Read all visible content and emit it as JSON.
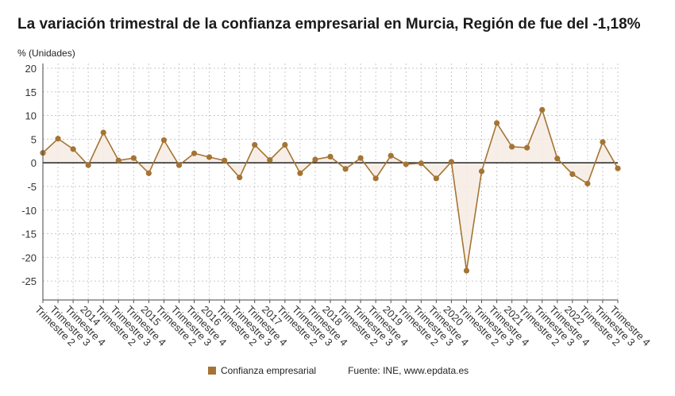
{
  "colors": {
    "series": "#a57434",
    "fill": "#f6ece3",
    "zero": "#222222",
    "grid": "#c8c8c8"
  },
  "source": "Fuente: INE, www.epdata.es",
  "chart_data": {
    "type": "line",
    "title": "La variación trimestral de la confianza empresarial en Murcia, Región de fue del -1,18%",
    "ylabel": "% (Unidades)",
    "xlabel": "",
    "ylim": [
      -29,
      21
    ],
    "yticks": [
      20,
      15,
      10,
      5,
      0,
      -5,
      -10,
      -15,
      -20,
      -25
    ],
    "grid": true,
    "legend_position": "bottom",
    "x": [
      "Trimestre 2",
      "Trimestre 3",
      "Trimestre 4",
      "2014",
      "Trimestre 2",
      "Trimestre 3",
      "Trimestre 4",
      "2015",
      "Trimestre 2",
      "Trimestre 3",
      "Trimestre 4",
      "2016",
      "Trimestre 2",
      "Trimestre 3",
      "Trimestre 4",
      "2017",
      "Trimestre 2",
      "Trimestre 3",
      "Trimestre 4",
      "2018",
      "Trimestre 2",
      "Trimestre 3",
      "Trimestre 4",
      "2019",
      "Trimestre 2",
      "Trimestre 3",
      "Trimestre 4",
      "2020",
      "Trimestre 2",
      "Trimestre 3",
      "Trimestre 4",
      "2021",
      "Trimestre 2",
      "Trimestre 3",
      "Trimestre 4",
      "2022",
      "Trimestre 2",
      "Trimestre 3",
      "Trimestre 4"
    ],
    "series": [
      {
        "name": "Confianza empresarial",
        "values": [
          2.1,
          5.1,
          2.9,
          -0.5,
          6.4,
          0.5,
          1.0,
          -2.2,
          4.8,
          -0.5,
          2.0,
          1.2,
          0.5,
          -3.1,
          3.8,
          0.6,
          3.8,
          -2.2,
          0.7,
          1.3,
          -1.3,
          1.0,
          -3.3,
          1.5,
          -0.3,
          -0.1,
          -3.3,
          0.2,
          -22.8,
          -1.8,
          8.4,
          3.4,
          3.2,
          11.2,
          0.9,
          -2.4,
          -4.4,
          4.4,
          -1.18
        ]
      }
    ]
  }
}
